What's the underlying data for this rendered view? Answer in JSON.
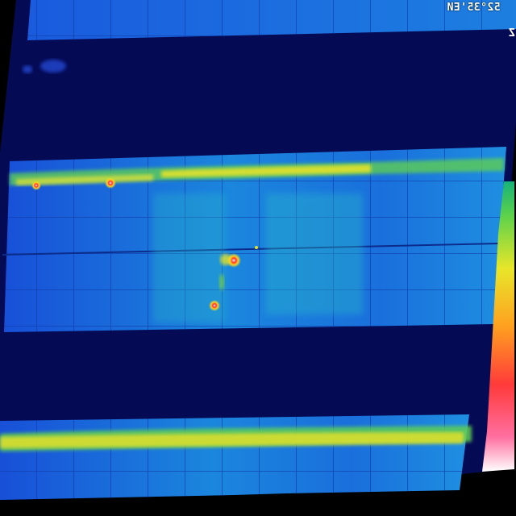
{
  "overlay": {
    "coordinate_text": "52°35'ЕИ",
    "edge_mark": "Z"
  },
  "palette": {
    "background": "#000000",
    "sky_band": "#050a55",
    "panel_blue": "#1a63e0",
    "panel_cyan": "#1f9ad8",
    "warm_green": "#7ad33a",
    "warm_yellow": "#e9e324",
    "hot_orange": "#ff7a1a",
    "hot_red": "#ff2a2a",
    "hot_white": "#ffffff"
  },
  "icons": {
    "scale_bar": "thermal-color-scale-icon"
  }
}
